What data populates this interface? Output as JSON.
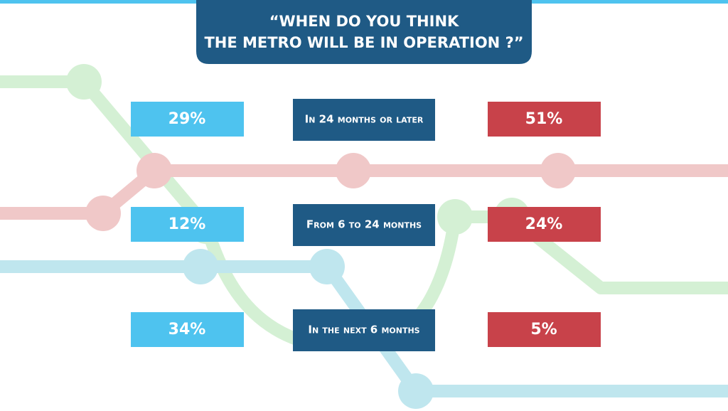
{
  "header": {
    "title": [
      "“WHEN DO YOU THINK",
      "THE METRO WILL BE IN OPERATION ?”"
    ]
  },
  "rows": [
    {
      "left": "29%",
      "label": "In 24 months or later",
      "right": "51%"
    },
    {
      "left": "12%",
      "label": "From 6 to 24 months",
      "right": "24%"
    },
    {
      "left": "34%",
      "label": "In the next 6 months",
      "right": "5%"
    }
  ]
}
